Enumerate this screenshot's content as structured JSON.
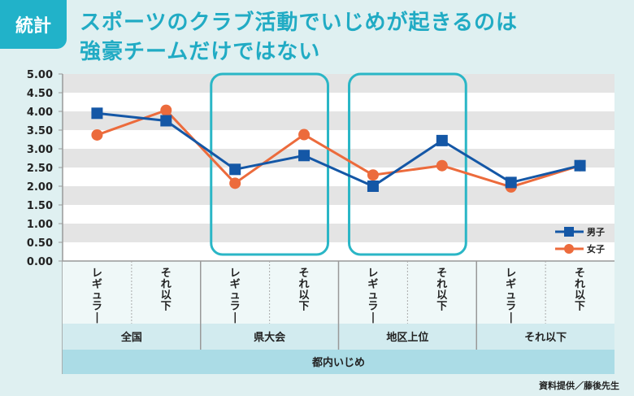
{
  "tag": "統計",
  "title_lines": [
    "スポーツのクラブ活動でいじめが起きるのは",
    "強豪チームだけではない"
  ],
  "credit": "資料提供／藤後先生",
  "colors": {
    "male": "#1457a6",
    "female": "#ec6b3c",
    "highlight": "#2ab6c6",
    "accent": "#21b2c9"
  },
  "chart_data": {
    "type": "line",
    "title": "",
    "ylim": [
      0,
      5
    ],
    "yticks": [
      "0.00",
      "0.50",
      "1.00",
      "1.50",
      "2.00",
      "2.50",
      "3.00",
      "3.50",
      "4.00",
      "4.50",
      "5.00"
    ],
    "grid": "alternating horizontal bands",
    "legend": "bottom-right",
    "categories": [
      "レギュラー",
      "それ以下",
      "レギュラー",
      "それ以下",
      "レギュラー",
      "それ以下",
      "レギュラー",
      "それ以下"
    ],
    "groups": [
      "全国",
      "県大会",
      "地区上位",
      "それ以下"
    ],
    "outer_group": "都内いじめ",
    "highlighted_groups": [
      "県大会",
      "地区上位"
    ],
    "series": [
      {
        "name": "男子",
        "marker": "square",
        "values": [
          3.95,
          3.75,
          2.45,
          2.82,
          2.0,
          3.22,
          2.1,
          2.55
        ]
      },
      {
        "name": "女子",
        "marker": "circle",
        "values": [
          3.37,
          4.03,
          2.08,
          3.38,
          2.3,
          2.55,
          1.98,
          2.55
        ]
      }
    ]
  }
}
